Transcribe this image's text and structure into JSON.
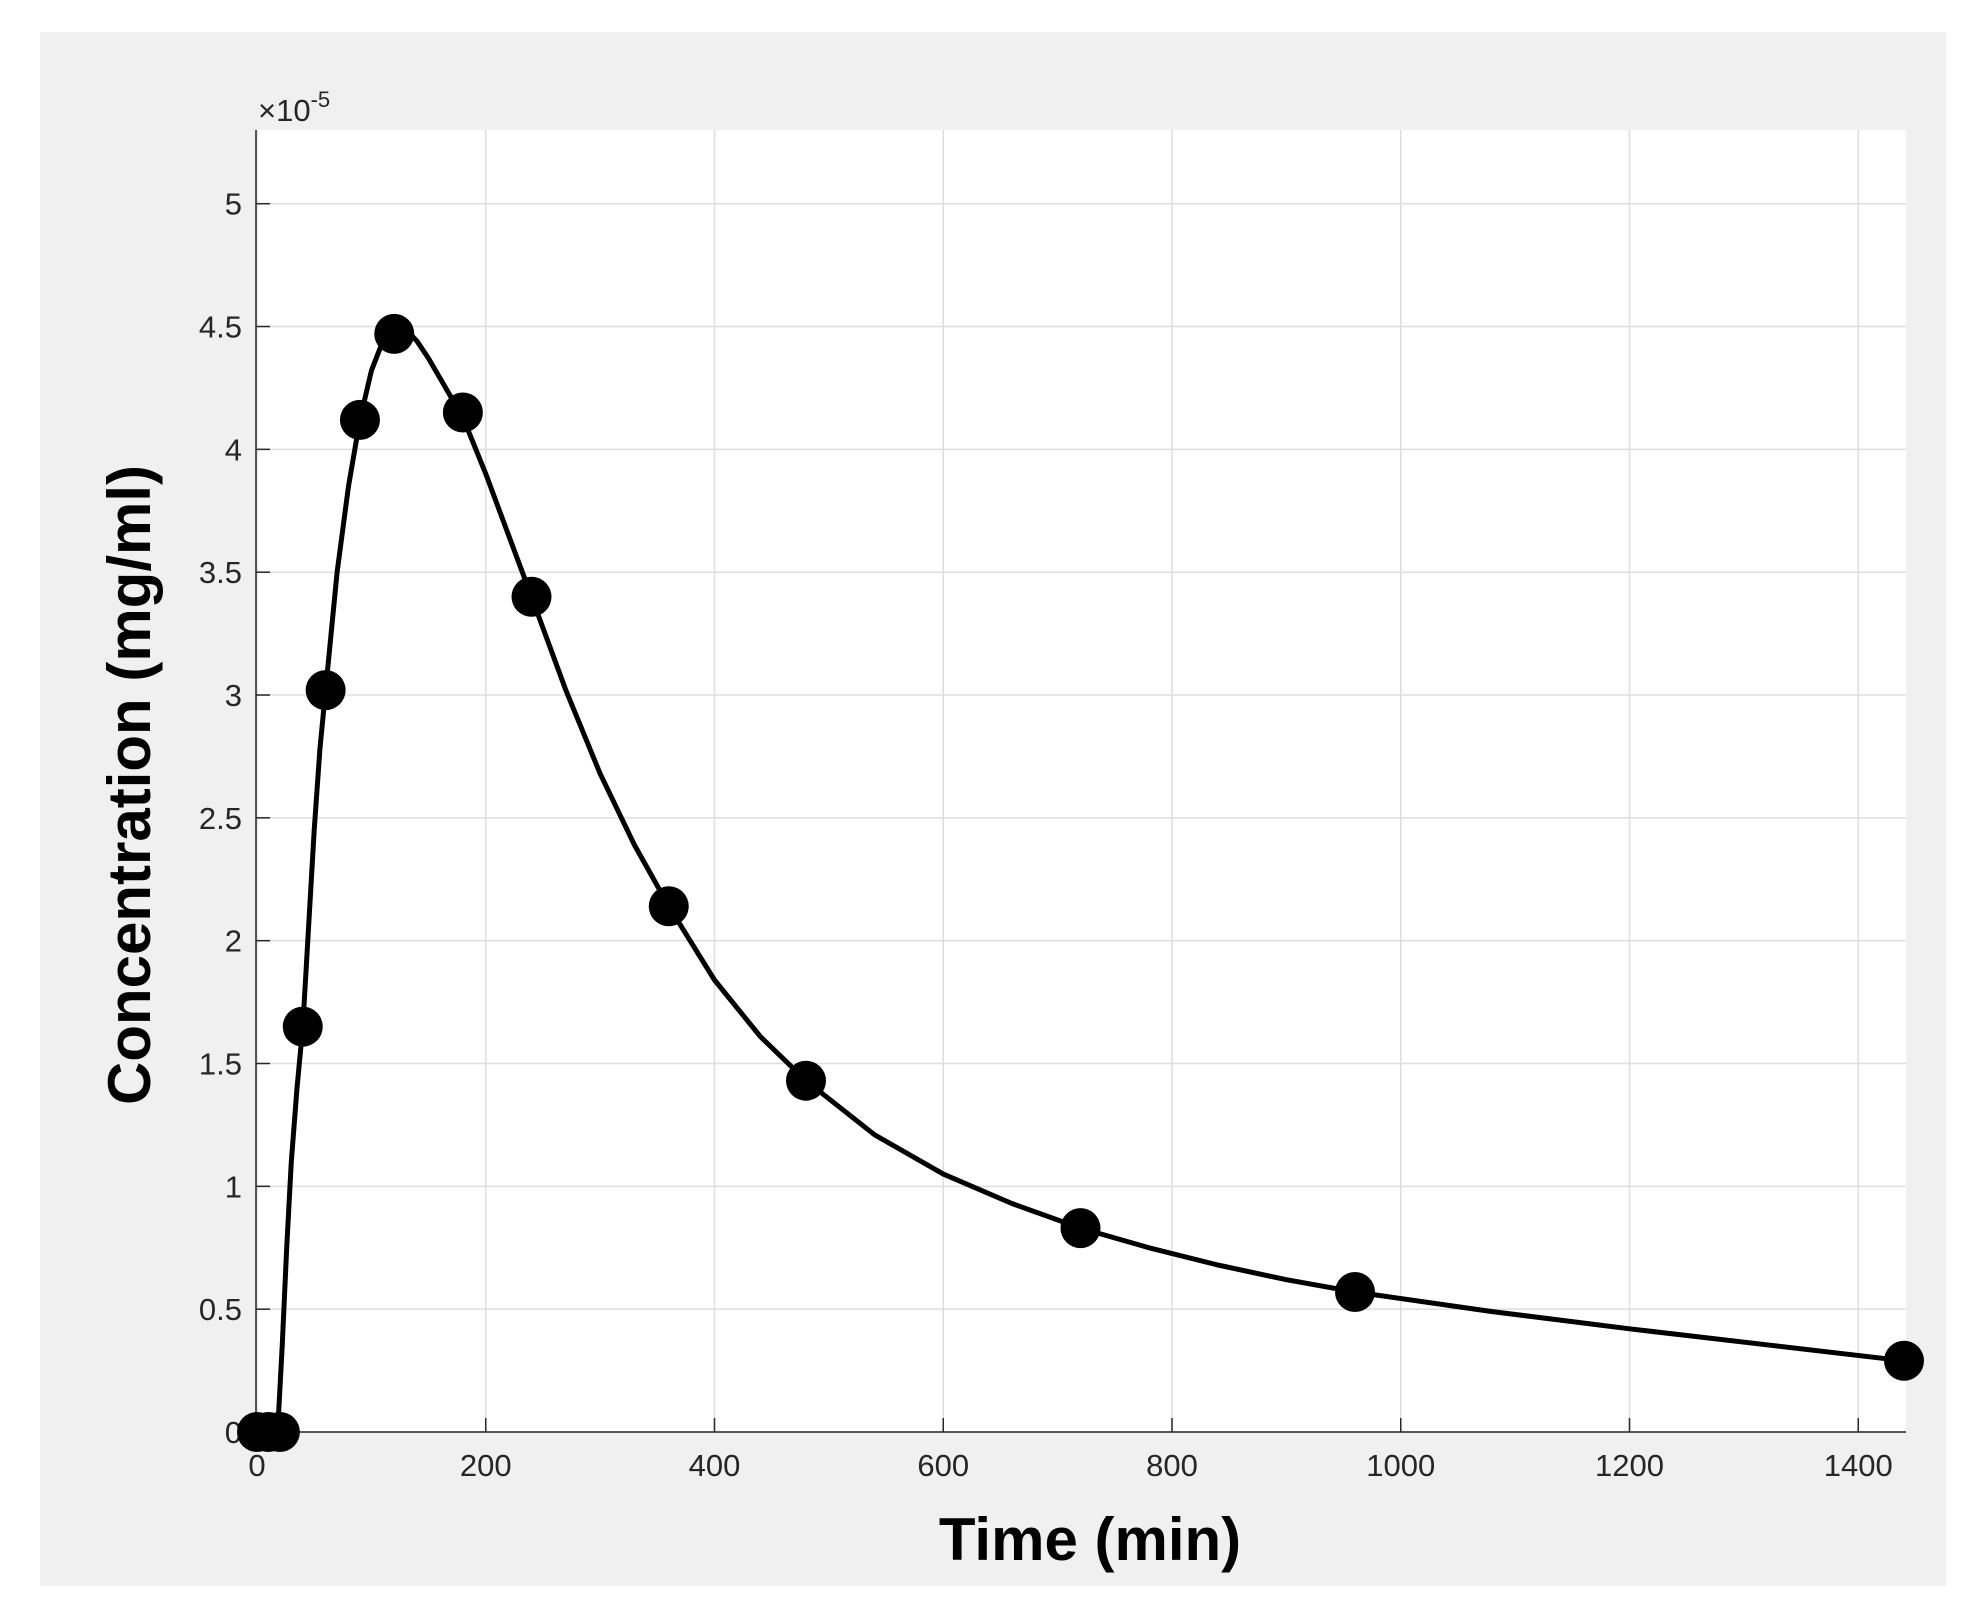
{
  "chart_data": {
    "type": "scatter",
    "title": "",
    "xlabel": "Time (min)",
    "ylabel": "Concentration (mg/ml)",
    "xlim": [
      0,
      1440
    ],
    "ylim": [
      0,
      5.3
    ],
    "y_multiplier_label": "×10",
    "y_multiplier_exponent": "-5",
    "grid": true,
    "x_ticks": [
      0,
      200,
      400,
      600,
      800,
      1000,
      1200,
      1400
    ],
    "x_tick_labels": [
      "0",
      "200",
      "400",
      "600",
      "800",
      "1000",
      "1200",
      "1400"
    ],
    "y_ticks": [
      0,
      0.5,
      1,
      1.5,
      2,
      2.5,
      3,
      3.5,
      4,
      4.5,
      5
    ],
    "y_tick_labels": [
      "0",
      "0.5",
      "1",
      "1.5",
      "2",
      "2.5",
      "3",
      "3.5",
      "4",
      "4.5",
      "5"
    ],
    "series": [
      {
        "kind": "markers",
        "x": [
          0,
          10,
          20,
          40,
          60,
          90,
          120,
          180,
          240,
          360,
          480,
          720,
          960,
          1440
        ],
        "y": [
          0,
          0,
          0,
          1.65,
          3.02,
          4.12,
          4.47,
          4.15,
          3.4,
          2.14,
          1.43,
          0.83,
          0.57,
          0.29
        ],
        "color": "#000000"
      },
      {
        "kind": "line",
        "x": [
          0,
          10,
          18,
          22,
          26,
          30,
          35,
          40,
          45,
          50,
          55,
          60,
          70,
          80,
          90,
          100,
          110,
          120,
          130,
          140,
          150,
          160,
          170,
          180,
          200,
          220,
          240,
          270,
          300,
          330,
          360,
          400,
          440,
          480,
          540,
          600,
          660,
          720,
          780,
          840,
          900,
          960,
          1080,
          1200,
          1320,
          1440
        ],
        "y": [
          0,
          0,
          0,
          0.35,
          0.75,
          1.1,
          1.4,
          1.65,
          2.05,
          2.45,
          2.78,
          3.02,
          3.5,
          3.85,
          4.12,
          4.32,
          4.44,
          4.5,
          4.49,
          4.44,
          4.37,
          4.29,
          4.21,
          4.13,
          3.9,
          3.65,
          3.4,
          3.02,
          2.68,
          2.39,
          2.14,
          1.84,
          1.61,
          1.43,
          1.21,
          1.05,
          0.93,
          0.83,
          0.75,
          0.68,
          0.62,
          0.57,
          0.49,
          0.42,
          0.355,
          0.29
        ],
        "color": "#000000"
      }
    ]
  }
}
